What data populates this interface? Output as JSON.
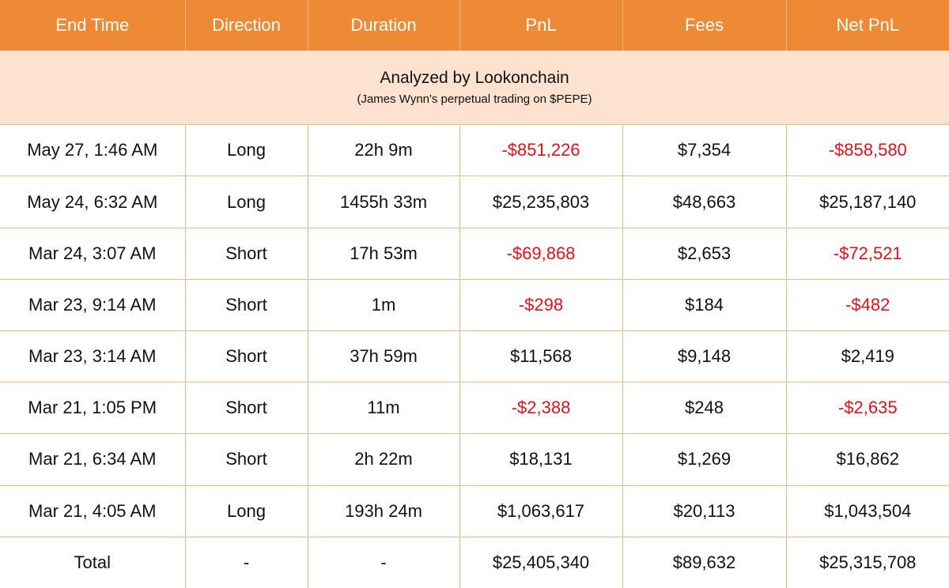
{
  "headers": [
    "End Time",
    "Direction",
    "Duration",
    "PnL",
    "Fees",
    "Net PnL"
  ],
  "banner": {
    "title": "Analyzed by Lookonchain",
    "subtitle": "(James Wynn's perpetual trading on $PEPE)"
  },
  "colors": {
    "header_bg": "#ee8a35",
    "banner_bg": "#fde3cf",
    "negative": "#e8101a",
    "grid": "#f1b78a"
  },
  "rows": [
    {
      "end_time": "May 27, 1:46 AM",
      "direction": "Long",
      "duration": "22h 9m",
      "pnl": "-$851,226",
      "fees": "$7,354",
      "net_pnl": "-$858,580"
    },
    {
      "end_time": "May 24, 6:32 AM",
      "direction": "Long",
      "duration": "1455h 33m",
      "pnl": "$25,235,803",
      "fees": "$48,663",
      "net_pnl": "$25,187,140"
    },
    {
      "end_time": "Mar 24, 3:07 AM",
      "direction": "Short",
      "duration": "17h 53m",
      "pnl": "-$69,868",
      "fees": "$2,653",
      "net_pnl": "-$72,521"
    },
    {
      "end_time": "Mar 23, 9:14 AM",
      "direction": "Short",
      "duration": "1m",
      "pnl": "-$298",
      "fees": "$184",
      "net_pnl": "-$482"
    },
    {
      "end_time": "Mar 23, 3:14 AM",
      "direction": "Short",
      "duration": "37h 59m",
      "pnl": "$11,568",
      "fees": "$9,148",
      "net_pnl": "$2,419"
    },
    {
      "end_time": "Mar 21, 1:05 PM",
      "direction": "Short",
      "duration": "11m",
      "pnl": "-$2,388",
      "fees": "$248",
      "net_pnl": "-$2,635"
    },
    {
      "end_time": "Mar 21, 6:34 AM",
      "direction": "Short",
      "duration": "2h 22m",
      "pnl": "$18,131",
      "fees": "$1,269",
      "net_pnl": "$16,862"
    },
    {
      "end_time": "Mar 21, 4:05 AM",
      "direction": "Long",
      "duration": "193h 24m",
      "pnl": "$1,063,617",
      "fees": "$20,113",
      "net_pnl": "$1,043,504"
    }
  ],
  "total": {
    "label": "Total",
    "direction": "-",
    "duration": "-",
    "pnl": "$25,405,340",
    "fees": "$89,632",
    "net_pnl": "$25,315,708"
  }
}
